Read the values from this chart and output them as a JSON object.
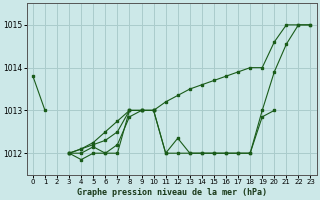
{
  "title": "Graphe pression niveau de la mer (hPa)",
  "background_color": "#cce8e8",
  "grid_color": "#aacccc",
  "line_color": "#1a5c1a",
  "xlim": [
    -0.5,
    23.5
  ],
  "ylim": [
    1011.5,
    1015.5
  ],
  "yticks": [
    1012,
    1013,
    1014,
    1015
  ],
  "xticks": [
    0,
    1,
    2,
    3,
    4,
    5,
    6,
    7,
    8,
    9,
    10,
    11,
    12,
    13,
    14,
    15,
    16,
    17,
    18,
    19,
    20,
    21,
    22,
    23
  ],
  "series": [
    [
      1013.8,
      1013.0,
      null,
      null,
      null,
      null,
      null,
      null,
      null,
      null,
      null,
      null,
      null,
      null,
      null,
      null,
      null,
      null,
      null,
      null,
      null,
      null,
      null,
      null
    ],
    [
      null,
      null,
      null,
      1012.0,
      1011.85,
      1012.0,
      1012.0,
      1012.0,
      1013.0,
      1013.0,
      1013.0,
      null,
      null,
      null,
      null,
      null,
      null,
      null,
      null,
      null,
      null,
      null,
      null,
      null
    ],
    [
      null,
      null,
      null,
      1012.0,
      1012.0,
      1012.15,
      1012.0,
      1012.2,
      1012.85,
      1013.0,
      1013.0,
      1012.0,
      1012.35,
      1012.0,
      1012.0,
      1012.0,
      1012.0,
      1012.0,
      1012.0,
      1012.85,
      1013.0,
      null,
      null,
      null
    ],
    [
      null,
      null,
      null,
      1012.0,
      1012.1,
      1012.2,
      1012.3,
      1012.5,
      1013.0,
      1013.0,
      1013.0,
      1012.0,
      1012.0,
      1012.0,
      1012.0,
      1012.0,
      1012.0,
      1012.0,
      1012.0,
      1013.0,
      1013.9,
      1014.55,
      1015.0,
      1015.0
    ],
    [
      null,
      null,
      null,
      1012.0,
      1012.1,
      1012.25,
      1012.5,
      1012.75,
      1013.0,
      1013.0,
      1013.0,
      1013.2,
      1013.35,
      1013.5,
      1013.6,
      1013.7,
      1013.8,
      1013.9,
      1014.0,
      1014.0,
      1014.6,
      1015.0,
      1015.0,
      1015.0
    ]
  ]
}
